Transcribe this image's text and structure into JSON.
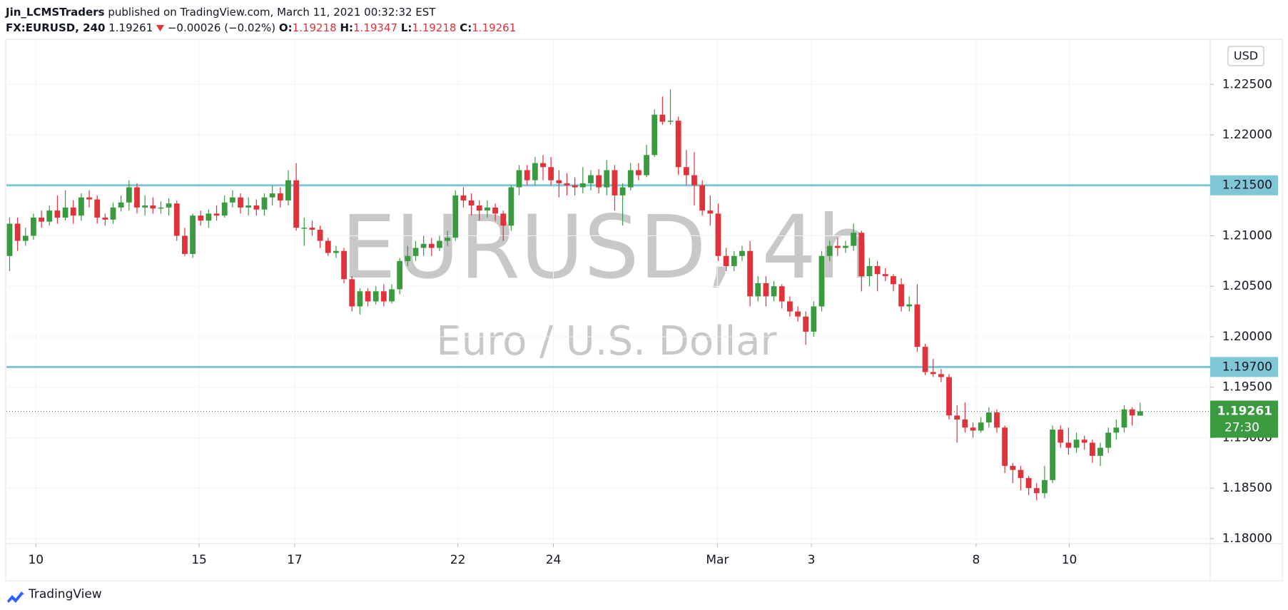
{
  "header": {
    "publisher": "Jin_LCMSTraders",
    "published": "published on TradingView.com, March 11, 2021 00:32:32 EST",
    "symbol": "FX:EURUSD, 240",
    "change": "−0.00026 (−0.02%)",
    "ohlc_labels": [
      "O:",
      "H:",
      "L:",
      "C:"
    ]
  },
  "chart_data": {
    "type": "candlestick",
    "watermark": "EURUSD, 4h",
    "subtitle": "Euro / U.S. Dollar",
    "currency": "USD",
    "countdown": "27:30",
    "brand": "TradingView",
    "up_color": "#3a9a40",
    "down_color": "#e0323a",
    "level_color": "#7fc7d6",
    "xlim": [
      -0.4,
      150.8
    ],
    "ylim": [
      1.1795,
      1.2294
    ],
    "xticks": [
      {
        "value": 3.3,
        "label": "10"
      },
      {
        "value": 23.8,
        "label": "15"
      },
      {
        "value": 35.8,
        "label": "17"
      },
      {
        "value": 56.3,
        "label": "22"
      },
      {
        "value": 68.3,
        "label": "24"
      },
      {
        "value": 88.9,
        "label": "Mar"
      },
      {
        "value": 100.7,
        "label": "3"
      },
      {
        "value": 121.4,
        "label": "8"
      },
      {
        "value": 133.1,
        "label": "10"
      }
    ],
    "yticks": [
      {
        "value": 1.18,
        "label": "1.18000"
      },
      {
        "value": 1.185,
        "label": "1.18500"
      },
      {
        "value": 1.19,
        "label": "1.19000"
      },
      {
        "value": 1.195,
        "label": "1.19500"
      },
      {
        "value": 1.2,
        "label": "1.20000"
      },
      {
        "value": 1.205,
        "label": "1.20500"
      },
      {
        "value": 1.21,
        "label": "1.21000"
      },
      {
        "value": 1.215,
        "label": "1.21500"
      },
      {
        "value": 1.22,
        "label": "1.22000"
      },
      {
        "value": 1.225,
        "label": "1.22500"
      }
    ],
    "grid": true,
    "levels": [
      {
        "value": 1.215,
        "label": "1.21500"
      },
      {
        "value": 1.197,
        "label": "1.19700"
      }
    ],
    "open": [
      1.208,
      1.2112,
      1.2095,
      1.21,
      1.2118,
      1.2114,
      1.2125,
      1.2118,
      1.2128,
      1.212,
      1.2138,
      1.2136,
      1.2118,
      1.2116,
      1.2128,
      1.2133,
      1.2148,
      1.2128,
      1.213,
      1.2127,
      1.2128,
      1.2132,
      1.21,
      1.2082,
      1.212,
      1.2115,
      1.2122,
      1.212,
      1.2133,
      1.2138,
      1.2128,
      1.213,
      1.2126,
      1.2138,
      1.2142,
      1.2135,
      1.2155,
      1.2108,
      1.2108,
      1.2106,
      1.2095,
      1.2083,
      1.2085,
      1.2057,
      1.203,
      1.2045,
      1.2035,
      1.2045,
      1.2035,
      1.2047,
      1.2075,
      1.208,
      1.2088,
      1.2092,
      1.2088,
      1.2095,
      1.2098,
      1.214,
      1.2135,
      1.213,
      1.2125,
      1.2128,
      1.2122,
      1.211,
      1.2148,
      1.2165,
      1.2155,
      1.2172,
      1.2168,
      1.2155,
      1.2152,
      1.215,
      1.2148,
      1.2152,
      1.216,
      1.2148,
      1.2165,
      1.214,
      1.2148,
      1.2165,
      1.216,
      1.218,
      1.222,
      1.2213,
      1.2214,
      1.2168,
      1.216,
      1.215,
      1.2125,
      1.2122,
      1.208,
      1.207,
      1.208,
      1.2085,
      1.204,
      1.2053,
      1.204,
      1.205,
      1.2035,
      1.2025,
      1.202,
      1.2005,
      1.203,
      1.208,
      1.209,
      1.2088,
      1.209,
      1.2103,
      1.206,
      1.207,
      1.2062,
      1.206,
      1.2052,
      1.203,
      1.2032,
      1.199,
      1.1965,
      1.1963,
      1.196,
      1.1922,
      1.1918,
      1.191,
      1.1907,
      1.1915,
      1.1925,
      1.191,
      1.1872,
      1.1868,
      1.186,
      1.185,
      1.1845,
      1.1858,
      1.1908,
      1.1895,
      1.189,
      1.1898,
      1.1895,
      1.1882,
      1.189,
      1.1905,
      1.191,
      1.1928,
      1.19218
    ],
    "high": [
      1.2118,
      1.2118,
      1.2108,
      1.2122,
      1.2125,
      1.213,
      1.214,
      1.2145,
      1.2135,
      1.2142,
      1.2145,
      1.214,
      1.2122,
      1.2133,
      1.214,
      1.2155,
      1.2152,
      1.214,
      1.2138,
      1.2134,
      1.2137,
      1.2135,
      1.2108,
      1.2122,
      1.2125,
      1.2126,
      1.213,
      1.214,
      1.2145,
      1.2142,
      1.2138,
      1.2136,
      1.2142,
      1.215,
      1.2148,
      1.2165,
      1.2172,
      1.2118,
      1.2115,
      1.211,
      1.2098,
      1.209,
      1.2088,
      1.206,
      1.2048,
      1.2048,
      1.205,
      1.2052,
      1.2052,
      1.2078,
      1.209,
      1.2095,
      1.21,
      1.2098,
      1.21,
      1.2105,
      1.2145,
      1.2148,
      1.2142,
      1.2135,
      1.2135,
      1.2132,
      1.2125,
      1.215,
      1.217,
      1.217,
      1.2178,
      1.218,
      1.2178,
      1.2165,
      1.2162,
      1.2158,
      1.2168,
      1.2165,
      1.2166,
      1.2175,
      1.217,
      1.2152,
      1.2172,
      1.2172,
      1.219,
      1.2225,
      1.2238,
      1.2245,
      1.2218,
      1.2185,
      1.2183,
      1.2155,
      1.214,
      1.2132,
      1.2088,
      1.2085,
      1.209,
      1.2095,
      1.206,
      1.206,
      1.2055,
      1.2052,
      1.204,
      1.203,
      1.2025,
      1.2035,
      1.2085,
      1.2095,
      1.2098,
      1.2095,
      1.2112,
      1.2105,
      1.2078,
      1.2075,
      1.2068,
      1.2062,
      1.2058,
      1.204,
      1.2052,
      1.1993,
      1.1978,
      1.1968,
      1.1963,
      1.1932,
      1.1935,
      1.1915,
      1.192,
      1.193,
      1.1928,
      1.1912,
      1.1875,
      1.1872,
      1.1862,
      1.1855,
      1.1872,
      1.1912,
      1.1912,
      1.191,
      1.1905,
      1.1902,
      1.1898,
      1.1895,
      1.191,
      1.1918,
      1.1932,
      1.193,
      1.19347
    ],
    "low": [
      1.2065,
      1.2085,
      1.209,
      1.2096,
      1.2108,
      1.211,
      1.2112,
      1.2115,
      1.2112,
      1.2115,
      1.2128,
      1.2112,
      1.211,
      1.2112,
      1.2124,
      1.2125,
      1.2122,
      1.212,
      1.2122,
      1.2122,
      1.212,
      1.2095,
      1.208,
      1.2078,
      1.211,
      1.2108,
      1.2115,
      1.2118,
      1.2128,
      1.2122,
      1.212,
      1.212,
      1.212,
      1.213,
      1.2128,
      1.213,
      1.2105,
      1.209,
      1.21,
      1.2088,
      1.208,
      1.2078,
      1.2053,
      1.2025,
      1.2022,
      1.203,
      1.2032,
      1.203,
      1.2033,
      1.2042,
      1.207,
      1.2075,
      1.208,
      1.208,
      1.2085,
      1.209,
      1.2095,
      1.2128,
      1.212,
      1.2115,
      1.2118,
      1.2115,
      1.2095,
      1.2105,
      1.214,
      1.215,
      1.215,
      1.2155,
      1.215,
      1.2138,
      1.214,
      1.214,
      1.2142,
      1.2145,
      1.2142,
      1.214,
      1.2125,
      1.211,
      1.2145,
      1.2155,
      1.2158,
      1.2178,
      1.221,
      1.221,
      1.216,
      1.215,
      1.213,
      1.212,
      1.211,
      1.2075,
      1.2065,
      1.2065,
      1.2075,
      1.203,
      1.2035,
      1.203,
      1.2035,
      1.2028,
      1.202,
      1.2015,
      1.1992,
      1.2,
      1.2025,
      1.2075,
      1.208,
      1.2083,
      1.2085,
      1.2045,
      1.205,
      1.2045,
      1.2055,
      1.2045,
      1.2025,
      1.2025,
      1.1985,
      1.1962,
      1.196,
      1.1955,
      1.1918,
      1.1895,
      1.1905,
      1.19,
      1.1905,
      1.191,
      1.1905,
      1.1865,
      1.1855,
      1.1848,
      1.1843,
      1.1838,
      1.184,
      1.1855,
      1.189,
      1.1883,
      1.1885,
      1.1888,
      1.1875,
      1.1872,
      1.1885,
      1.1898,
      1.1905,
      1.1912,
      1.19218
    ],
    "close": [
      1.2112,
      1.2095,
      1.21,
      1.2118,
      1.2114,
      1.2125,
      1.2118,
      1.2128,
      1.212,
      1.2138,
      1.2136,
      1.2118,
      1.2116,
      1.2128,
      1.2133,
      1.2148,
      1.2128,
      1.213,
      1.2127,
      1.2128,
      1.2132,
      1.21,
      1.2082,
      1.212,
      1.2115,
      1.2122,
      1.212,
      1.2133,
      1.2138,
      1.2128,
      1.213,
      1.2126,
      1.2138,
      1.2142,
      1.2135,
      1.2155,
      1.2108,
      1.2108,
      1.2106,
      1.2095,
      1.2083,
      1.2085,
      1.2057,
      1.203,
      1.2045,
      1.2035,
      1.2045,
      1.2035,
      1.2047,
      1.2075,
      1.208,
      1.2088,
      1.2092,
      1.2088,
      1.2095,
      1.2098,
      1.214,
      1.2135,
      1.213,
      1.2125,
      1.2128,
      1.2122,
      1.211,
      1.2148,
      1.2165,
      1.2155,
      1.2172,
      1.2168,
      1.2155,
      1.2152,
      1.215,
      1.2148,
      1.2152,
      1.216,
      1.2148,
      1.2165,
      1.214,
      1.2148,
      1.2165,
      1.216,
      1.218,
      1.222,
      1.2213,
      1.2214,
      1.2168,
      1.216,
      1.215,
      1.2125,
      1.2122,
      1.208,
      1.207,
      1.208,
      1.2085,
      1.204,
      1.2053,
      1.204,
      1.205,
      1.2035,
      1.2025,
      1.202,
      1.2005,
      1.203,
      1.208,
      1.209,
      1.2088,
      1.209,
      1.2103,
      1.206,
      1.207,
      1.2062,
      1.206,
      1.2052,
      1.203,
      1.2032,
      1.199,
      1.1965,
      1.1963,
      1.196,
      1.1922,
      1.1918,
      1.191,
      1.1907,
      1.1915,
      1.1925,
      1.191,
      1.1872,
      1.1868,
      1.186,
      1.185,
      1.1845,
      1.1858,
      1.1908,
      1.1895,
      1.189,
      1.1898,
      1.1895,
      1.1882,
      1.189,
      1.1905,
      1.191,
      1.1928,
      1.1922,
      1.19261
    ]
  }
}
